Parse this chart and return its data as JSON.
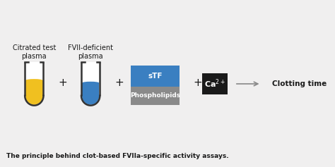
{
  "bg_color": "#f0efef",
  "title_text": "The principle behind clot-based FVIIa-specific activity assays.",
  "tube1_label": "Citrated test\nplasma",
  "tube2_label": "FVII-deficient\nplasma",
  "stf_label": "sTF",
  "phospho_label": "Phospholipids",
  "ca_label": "Ca2+",
  "result_label": "Clotting time",
  "plus_sign": "+",
  "tube1_liquid_color": "#f0c020",
  "tube2_liquid_color": "#3a7fc1",
  "stf_box_color": "#3a7fc1",
  "phospho_box_color": "#8a8a8a",
  "ca_box_color": "#1a1a1a",
  "tube_outline_color": "#333333",
  "tube_fill_color": "#ffffff",
  "arrow_color": "#888888",
  "text_color": "#1a1a1a",
  "label_fontsize": 7.0,
  "caption_fontsize": 6.5,
  "plus_fontsize": 11
}
